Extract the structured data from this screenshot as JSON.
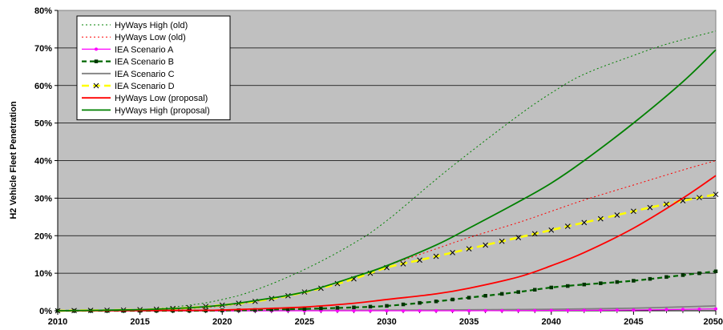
{
  "chart_data": {
    "type": "line",
    "title": "",
    "xlabel": "",
    "ylabel": "H2 Vehicle Fleet Penetration",
    "xlim": [
      2010,
      2050
    ],
    "ylim": [
      0,
      80
    ],
    "x_ticks": [
      2010,
      2015,
      2020,
      2025,
      2030,
      2035,
      2040,
      2045,
      2050
    ],
    "y_ticks": [
      0,
      10,
      20,
      30,
      40,
      50,
      60,
      70,
      80
    ],
    "y_tick_labels": [
      "0%",
      "10%",
      "20%",
      "30%",
      "40%",
      "50%",
      "60%",
      "70%",
      "80%"
    ],
    "x_tick_labels": [
      "2010",
      "2015",
      "2020",
      "2025",
      "2030",
      "2035",
      "2040",
      "2045",
      "2050"
    ],
    "grid": "horizontal",
    "plot_background": "#c0c0c0",
    "legend_position": "top-left",
    "series": [
      {
        "name": "HyWays High (old)",
        "color": "#008000",
        "style": "dotted",
        "x": [
          2010,
          2015,
          2018,
          2020,
          2022,
          2025,
          2028,
          2030,
          2033,
          2035,
          2038,
          2040,
          2042,
          2045,
          2047,
          2050
        ],
        "y": [
          0,
          0.3,
          1.5,
          3,
          5.5,
          11,
          18,
          24,
          35,
          42,
          52,
          58,
          63,
          68,
          71,
          74.5
        ]
      },
      {
        "name": "HyWays Low (old)",
        "color": "#ff0000",
        "style": "dotted",
        "x": [
          2010,
          2015,
          2018,
          2020,
          2022,
          2025,
          2028,
          2030,
          2033,
          2035,
          2038,
          2040,
          2042,
          2045,
          2048,
          2050
        ],
        "y": [
          0,
          0.1,
          0.6,
          1.3,
          2.5,
          5,
          9,
          12,
          16.5,
          19.5,
          23.5,
          26.5,
          29.5,
          33.5,
          37.5,
          40
        ]
      },
      {
        "name": "IEA Scenario A",
        "color": "#ff00ff",
        "style": "solid-dot",
        "x": [
          2010,
          2015,
          2020,
          2025,
          2030,
          2035,
          2040,
          2045,
          2050
        ],
        "y": [
          0,
          0,
          0,
          0,
          0,
          0,
          0.1,
          0.2,
          0.5
        ]
      },
      {
        "name": "IEA Scenario B",
        "color": "#006600",
        "style": "dashed-square",
        "x": [
          2010,
          2015,
          2018,
          2020,
          2022,
          2025,
          2028,
          2030,
          2033,
          2035,
          2038,
          2040,
          2042,
          2045,
          2048,
          2050
        ],
        "y": [
          0,
          0,
          0,
          0.1,
          0.2,
          0.5,
          0.9,
          1.3,
          2.5,
          3.5,
          5,
          6.2,
          7,
          8,
          9.5,
          10.5
        ]
      },
      {
        "name": "IEA Scenario C",
        "color": "#808080",
        "style": "solid",
        "x": [
          2010,
          2020,
          2025,
          2030,
          2035,
          2040,
          2045,
          2050
        ],
        "y": [
          0,
          0,
          0.1,
          0.15,
          0.25,
          0.4,
          0.7,
          1.3
        ]
      },
      {
        "name": "IEA Scenario D",
        "color": "#ffff00",
        "style": "dashed-x",
        "x": [
          2010,
          2014,
          2016,
          2018,
          2020,
          2022,
          2024,
          2026,
          2028,
          2030,
          2032,
          2034,
          2036,
          2038,
          2040,
          2042,
          2044,
          2046,
          2048,
          2050
        ],
        "y": [
          0,
          0.2,
          0.4,
          0.8,
          1.5,
          2.5,
          4,
          6,
          8.5,
          11.5,
          13.5,
          15.5,
          17.5,
          19.5,
          21.5,
          23.5,
          25.5,
          27.5,
          29.3,
          31
        ]
      },
      {
        "name": "HyWays Low (proposal)",
        "color": "#ff0000",
        "style": "solid",
        "x": [
          2010,
          2018,
          2020,
          2022,
          2025,
          2028,
          2030,
          2033,
          2035,
          2038,
          2040,
          2042,
          2045,
          2048,
          2050
        ],
        "y": [
          0,
          0.1,
          0.2,
          0.5,
          1,
          2,
          3,
          4.5,
          6,
          9,
          12,
          15.5,
          22,
          30,
          36
        ]
      },
      {
        "name": "HyWays High (proposal)",
        "color": "#008000",
        "style": "solid",
        "x": [
          2010,
          2015,
          2018,
          2020,
          2022,
          2025,
          2028,
          2030,
          2033,
          2035,
          2038,
          2040,
          2042,
          2045,
          2048,
          2050
        ],
        "y": [
          0,
          0.3,
          0.8,
          1.5,
          2.7,
          5,
          9,
          12,
          17.5,
          22,
          29,
          34,
          40,
          50,
          61,
          69.5
        ]
      }
    ]
  }
}
